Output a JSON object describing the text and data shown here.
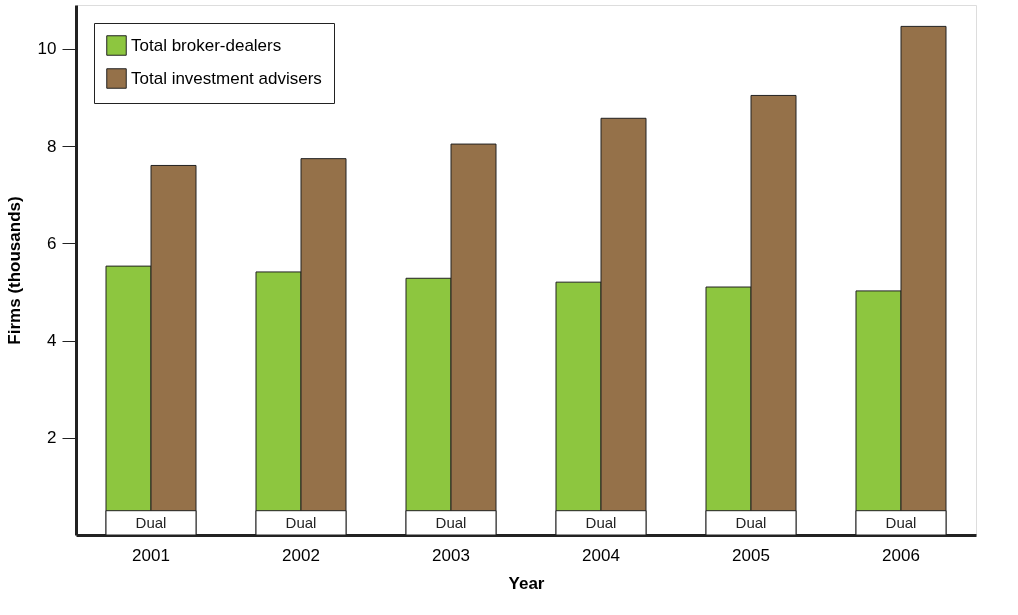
{
  "chart_data": {
    "type": "bar",
    "xlabel": "Year",
    "ylabel": "Firms (thousands)",
    "categories": [
      "2001",
      "2002",
      "2003",
      "2004",
      "2005",
      "2006"
    ],
    "series": [
      {
        "name": "Total broker-dealers",
        "color": "#8dc63f",
        "values": [
          5.53,
          5.41,
          5.28,
          5.2,
          5.1,
          5.02
        ]
      },
      {
        "name": "Total investment advisers",
        "color": "#957149",
        "values": [
          7.6,
          7.74,
          8.04,
          8.57,
          9.04,
          10.46
        ]
      },
      {
        "name": "Dual",
        "color": "#ffffff",
        "values": [
          0.5,
          0.5,
          0.5,
          0.5,
          0.5,
          0.5
        ]
      }
    ],
    "ylim": [
      0,
      10.9
    ],
    "yticks": [
      2,
      4,
      6,
      8,
      10
    ],
    "grid": false,
    "legend": "top left"
  }
}
